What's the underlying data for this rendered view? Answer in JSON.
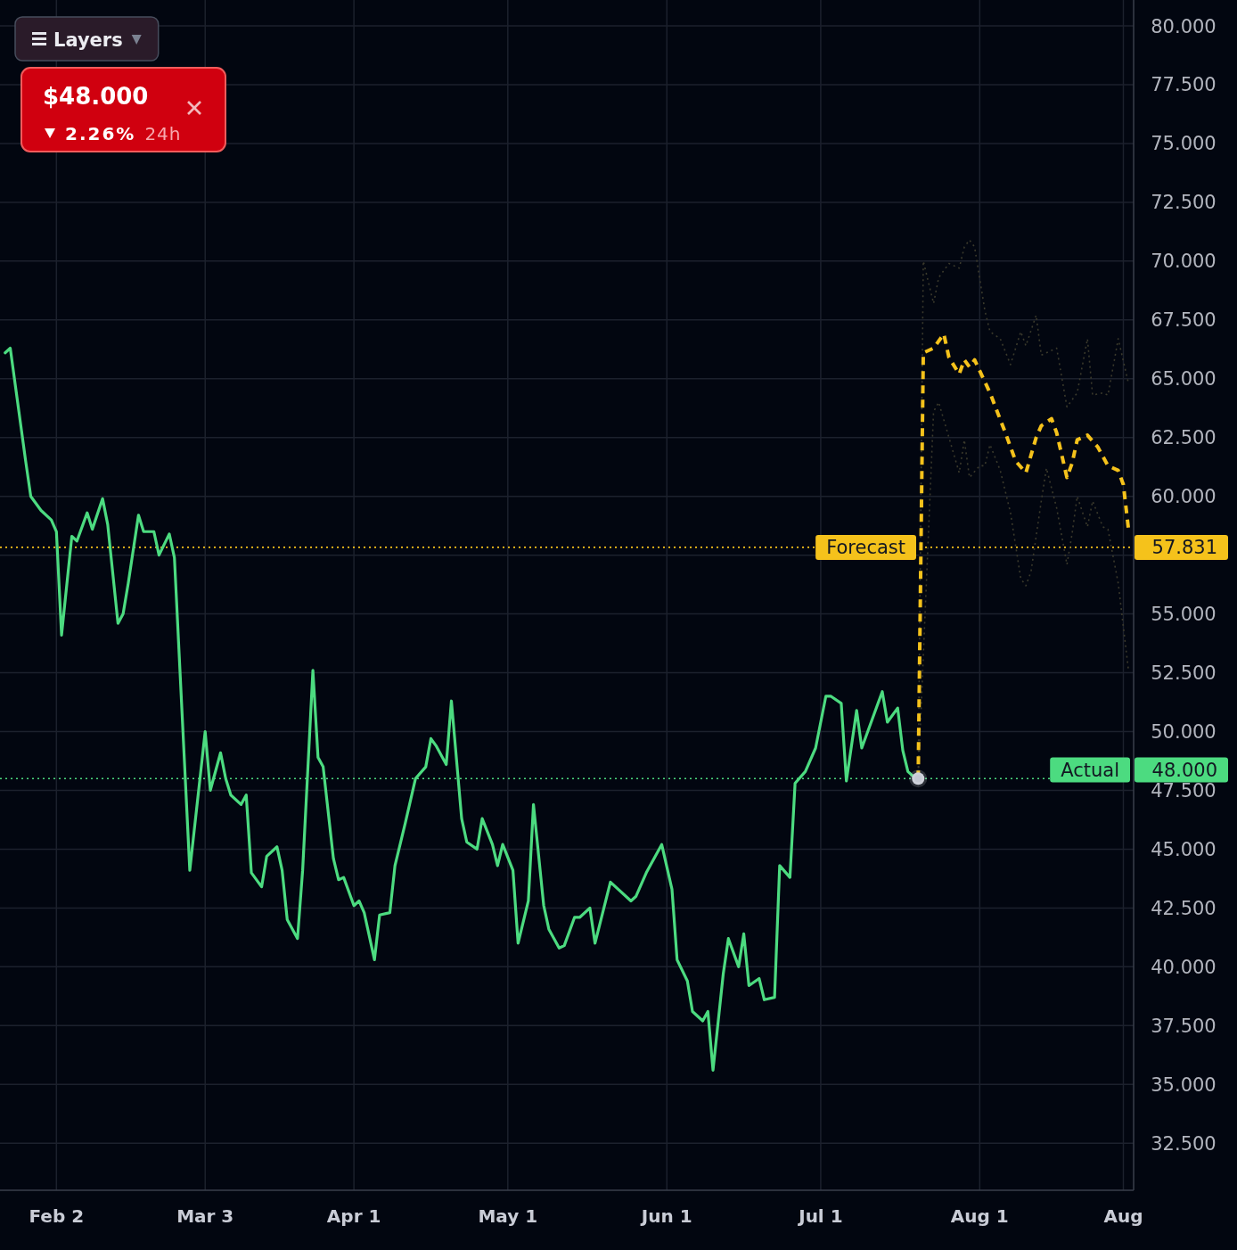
{
  "chart_data": {
    "type": "line",
    "annotations": [
      "Layers",
      "$48.000",
      "2.26%",
      "24h",
      "57.831",
      "48.000"
    ],
    "xlim": [
      "--01-22",
      "--08-31"
    ],
    "xticks": [
      {
        "value": "--02-02",
        "label": "Feb 2"
      },
      {
        "value": "--03-03",
        "label": "Mar 3"
      },
      {
        "value": "--04-01",
        "label": "Apr 1"
      },
      {
        "value": "--05-01",
        "label": "May 1"
      },
      {
        "value": "--06-01",
        "label": "Jun 1"
      },
      {
        "value": "--07-01",
        "label": "Jul 1"
      },
      {
        "value": "--08-01",
        "label": "Aug 1"
      },
      {
        "value": "--08-29",
        "label": "Aug"
      }
    ],
    "ylim": [
      30.5,
      81.1
    ],
    "yticks": [
      {
        "value": 32.5,
        "label": "32.500"
      },
      {
        "value": 35,
        "label": "35.000"
      },
      {
        "value": 37.5,
        "label": "37.500"
      },
      {
        "value": 40,
        "label": "40.000"
      },
      {
        "value": 42.5,
        "label": "42.500"
      },
      {
        "value": 45,
        "label": "45.000"
      },
      {
        "value": 47.5,
        "label": "47.500"
      },
      {
        "value": 50,
        "label": "50.000"
      },
      {
        "value": 52.5,
        "label": "52.500"
      },
      {
        "value": 55,
        "label": "55.000"
      },
      {
        "value": 57.5,
        "label": null
      },
      {
        "value": 60,
        "label": "60.000"
      },
      {
        "value": 62.5,
        "label": "62.500"
      },
      {
        "value": 65,
        "label": "65.000"
      },
      {
        "value": 67.5,
        "label": "67.500"
      },
      {
        "value": 70,
        "label": "70.000"
      },
      {
        "value": 72.5,
        "label": "72.500"
      },
      {
        "value": 75,
        "label": "75.000"
      },
      {
        "value": 77.5,
        "label": "77.500"
      },
      {
        "value": 80,
        "label": "80.000"
      }
    ],
    "grid": true,
    "ref_lines": [
      {
        "axis": "y",
        "value": 57.831,
        "label": "Forecast",
        "color": "#f5c21b",
        "line_style": "dotted"
      },
      {
        "axis": "y",
        "value": 48,
        "label": "Actual",
        "color": "#4cdb80",
        "line_style": "dotted"
      }
    ],
    "series": [
      {
        "color": "#3b3a2c",
        "line_style": "dotted",
        "x": [
          "--07-20",
          "--07-21",
          "--07-23",
          "--07-24",
          "--07-26",
          "--07-28",
          "--07-29",
          "--07-30",
          "--07-31",
          "--08-02",
          "--08-03",
          "--08-05",
          "--08-07",
          "--08-09",
          "--08-10",
          "--08-12",
          "--08-13",
          "--08-16",
          "--08-18",
          "--08-20",
          "--08-22",
          "--08-23",
          "--08-25",
          "--08-26",
          "--08-28",
          "--08-30"
        ],
        "values": [
          48.0,
          70.0,
          68.2,
          69.3,
          69.9,
          69.7,
          70.6,
          70.9,
          70.6,
          67.9,
          67.0,
          66.7,
          65.6,
          67.0,
          66.4,
          67.7,
          66.0,
          66.3,
          63.8,
          64.4,
          66.7,
          64.3,
          64.4,
          64.3,
          66.7,
          64.8
        ]
      },
      {
        "color": "#3b3a2c",
        "line_style": "dotted",
        "x": [
          "--07-20",
          "--07-23",
          "--07-24",
          "--07-26",
          "--07-28",
          "--07-29",
          "--07-30",
          "--08-01",
          "--08-02",
          "--08-03",
          "--08-05",
          "--08-07",
          "--08-09",
          "--08-10",
          "--08-11",
          "--08-13",
          "--08-14",
          "--08-16",
          "--08-18",
          "--08-19",
          "--08-20",
          "--08-22",
          "--08-23",
          "--08-25",
          "--08-26",
          "--08-28",
          "--08-30"
        ],
        "values": [
          48.0,
          63.6,
          64.0,
          62.5,
          61.0,
          62.4,
          60.8,
          61.3,
          61.3,
          62.2,
          61.1,
          59.3,
          56.5,
          56.2,
          56.8,
          59.8,
          61.2,
          59.5,
          57.1,
          58.4,
          60.0,
          58.7,
          59.8,
          58.7,
          58.6,
          56.3,
          52.6
        ]
      },
      {
        "color": "#4cdb80",
        "line_style": "solid",
        "x": [
          "--01-23",
          "--01-24",
          "--01-27",
          "--01-28",
          "--01-30",
          "--02-01",
          "--02-02",
          "--02-03",
          "--02-05",
          "--02-06",
          "--02-08",
          "--02-09",
          "--02-11",
          "--02-12",
          "--02-14",
          "--02-15",
          "--02-16",
          "--02-18",
          "--02-19",
          "--02-21",
          "--02-22",
          "--02-24",
          "--02-25",
          "--02-28",
          "--03-03",
          "--03-04",
          "--03-06",
          "--03-07",
          "--03-08",
          "--03-10",
          "--03-11",
          "--03-12",
          "--03-14",
          "--03-15",
          "--03-17",
          "--03-18",
          "--03-19",
          "--03-21",
          "--03-22",
          "--03-24",
          "--03-25",
          "--03-26",
          "--03-28",
          "--03-29",
          "--03-30",
          "--04-01",
          "--04-02",
          "--04-03",
          "--04-05",
          "--04-06",
          "--04-08",
          "--04-09",
          "--04-11",
          "--04-13",
          "--04-15",
          "--04-16",
          "--04-17",
          "--04-19",
          "--04-20",
          "--04-22",
          "--04-23",
          "--04-25",
          "--04-26",
          "--04-28",
          "--04-29",
          "--04-30",
          "--05-02",
          "--05-03",
          "--05-05",
          "--05-06",
          "--05-08",
          "--05-09",
          "--05-11",
          "--05-12",
          "--05-14",
          "--05-15",
          "--05-17",
          "--05-18",
          "--05-21",
          "--05-25",
          "--05-26",
          "--05-28",
          "--05-31",
          "--06-02",
          "--06-03",
          "--06-05",
          "--06-06",
          "--06-08",
          "--06-09",
          "--06-10",
          "--06-12",
          "--06-13",
          "--06-15",
          "--06-16",
          "--06-17",
          "--06-19",
          "--06-20",
          "--06-22",
          "--06-23",
          "--06-25",
          "--06-26",
          "--06-28",
          "--06-30",
          "--07-02",
          "--07-03",
          "--07-05",
          "--07-06",
          "--07-08",
          "--07-09",
          "--07-12",
          "--07-13",
          "--07-14",
          "--07-16",
          "--07-17",
          "--07-18",
          "--07-19",
          "--07-20"
        ],
        "values": [
          66.1,
          66.3,
          61.5,
          60.0,
          59.4,
          59.0,
          58.5,
          54.1,
          58.3,
          58.1,
          59.3,
          58.6,
          59.9,
          58.8,
          54.6,
          55.0,
          56.3,
          59.2,
          58.5,
          58.5,
          57.5,
          58.4,
          57.4,
          44.1,
          50.0,
          47.5,
          49.1,
          48.0,
          47.3,
          46.9,
          47.3,
          44.0,
          43.4,
          44.7,
          45.1,
          44.1,
          42.0,
          41.2,
          44.1,
          52.6,
          48.9,
          48.5,
          44.6,
          43.7,
          43.8,
          42.6,
          42.8,
          42.3,
          40.3,
          42.2,
          42.3,
          44.3,
          46.1,
          48.0,
          48.5,
          49.7,
          49.4,
          48.6,
          51.3,
          46.3,
          45.3,
          45.0,
          46.3,
          45.2,
          44.3,
          45.2,
          44.1,
          41.0,
          42.8,
          46.9,
          42.6,
          41.6,
          40.8,
          40.9,
          42.1,
          42.1,
          42.5,
          41.0,
          43.6,
          42.8,
          43.0,
          44.0,
          45.2,
          43.3,
          40.3,
          39.4,
          38.1,
          37.7,
          38.1,
          35.6,
          39.7,
          41.2,
          40.0,
          41.4,
          39.2,
          39.5,
          38.6,
          38.7,
          44.3,
          43.8,
          47.8,
          48.3,
          49.3,
          51.5,
          51.5,
          51.2,
          47.9,
          50.9,
          49.3,
          51.1,
          51.7,
          50.4,
          51.0,
          49.2,
          48.3,
          48.1,
          48.0
        ]
      },
      {
        "color": "#f5c21b",
        "line_style": "dashed",
        "x": [
          "--07-20",
          "--07-21",
          "--07-23",
          "--07-25",
          "--07-26",
          "--07-28",
          "--07-29",
          "--07-30",
          "--07-31",
          "--08-03",
          "--08-06",
          "--08-08",
          "--08-10",
          "--08-12",
          "--08-13",
          "--08-15",
          "--08-16",
          "--08-18",
          "--08-19",
          "--08-20",
          "--08-22",
          "--08-24",
          "--08-26",
          "--08-28",
          "--08-29",
          "--08-30"
        ],
        "values": [
          48.0,
          66.1,
          66.3,
          66.9,
          65.9,
          65.2,
          65.8,
          65.5,
          65.8,
          64.4,
          62.7,
          61.5,
          61.0,
          62.5,
          63.0,
          63.3,
          62.7,
          60.8,
          61.4,
          62.4,
          62.6,
          62.1,
          61.3,
          61.1,
          60.5,
          58.6
        ]
      },
      {
        "type": "scatter",
        "color": "#c5c9d3",
        "marker": "circle",
        "x": [
          "--07-20"
        ],
        "values": [
          48.0
        ]
      }
    ]
  }
}
